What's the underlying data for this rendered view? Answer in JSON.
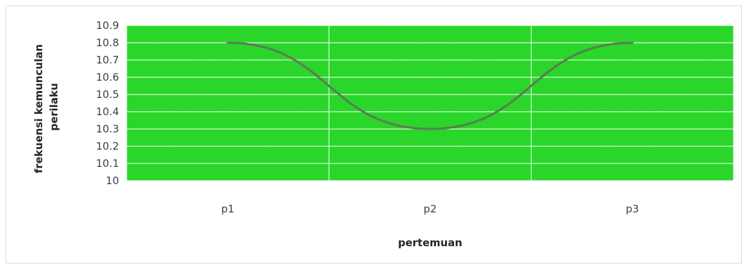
{
  "chart_data": {
    "type": "line",
    "categories": [
      "p1",
      "p2",
      "p3"
    ],
    "series": [
      {
        "values": [
          10.8,
          10.3,
          10.8
        ],
        "color": "#5b7f52"
      }
    ],
    "title": "",
    "xlabel": "pertemuan",
    "ylabel_lines": [
      "frekuensi kemunculan",
      "perilaku"
    ],
    "ylim": [
      10,
      10.9
    ],
    "y_ticks": [
      "10",
      "10.1",
      "10.2",
      "10.3",
      "10.4",
      "10.5",
      "10.6",
      "10.7",
      "10.8",
      "10.9"
    ],
    "grid": true,
    "smooth": true,
    "plot_background": "#1ee31e",
    "plot_hatch_color": "#3fbf3f",
    "grid_color": "#ffffff"
  }
}
